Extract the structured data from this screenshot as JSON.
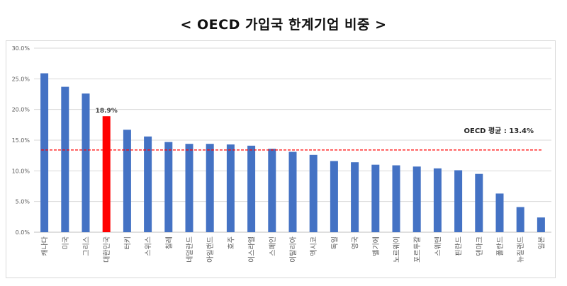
{
  "chart_data": {
    "type": "bar",
    "title": "< OECD 가입국 한계기업 비중 >",
    "categories": [
      "캐나다",
      "미국",
      "그리스",
      "대한민국",
      "터키",
      "스위스",
      "칠레",
      "네덜란드",
      "아일랜드",
      "호주",
      "이스라엘",
      "스페인",
      "이탈리아",
      "멕시코",
      "독일",
      "영국",
      "벨기에",
      "노르웨이",
      "포르투갈",
      "스웨덴",
      "핀란드",
      "덴마크",
      "폴란드",
      "뉴질랜드",
      "일본"
    ],
    "values": [
      25.9,
      23.7,
      22.6,
      18.9,
      16.7,
      15.6,
      14.7,
      14.4,
      14.4,
      14.3,
      14.1,
      13.6,
      13.1,
      12.6,
      11.6,
      11.4,
      11.0,
      10.9,
      10.7,
      10.4,
      10.1,
      9.5,
      6.3,
      4.1,
      2.4
    ],
    "highlight": {
      "category": "대한민국",
      "label": "18.9%",
      "color": "#ff0000"
    },
    "bar_color": "#4472c4",
    "yticks": [
      "0.0%",
      "5.0%",
      "10.0%",
      "15.0%",
      "20.0%",
      "25.0%",
      "30.0%"
    ],
    "ylim": [
      0,
      30
    ],
    "reference_line": {
      "value": 13.4,
      "label": "OECD 평균 : 13.4%",
      "color": "#ff0000",
      "style": "dashed"
    },
    "grid": true,
    "xlabel": "",
    "ylabel": ""
  }
}
